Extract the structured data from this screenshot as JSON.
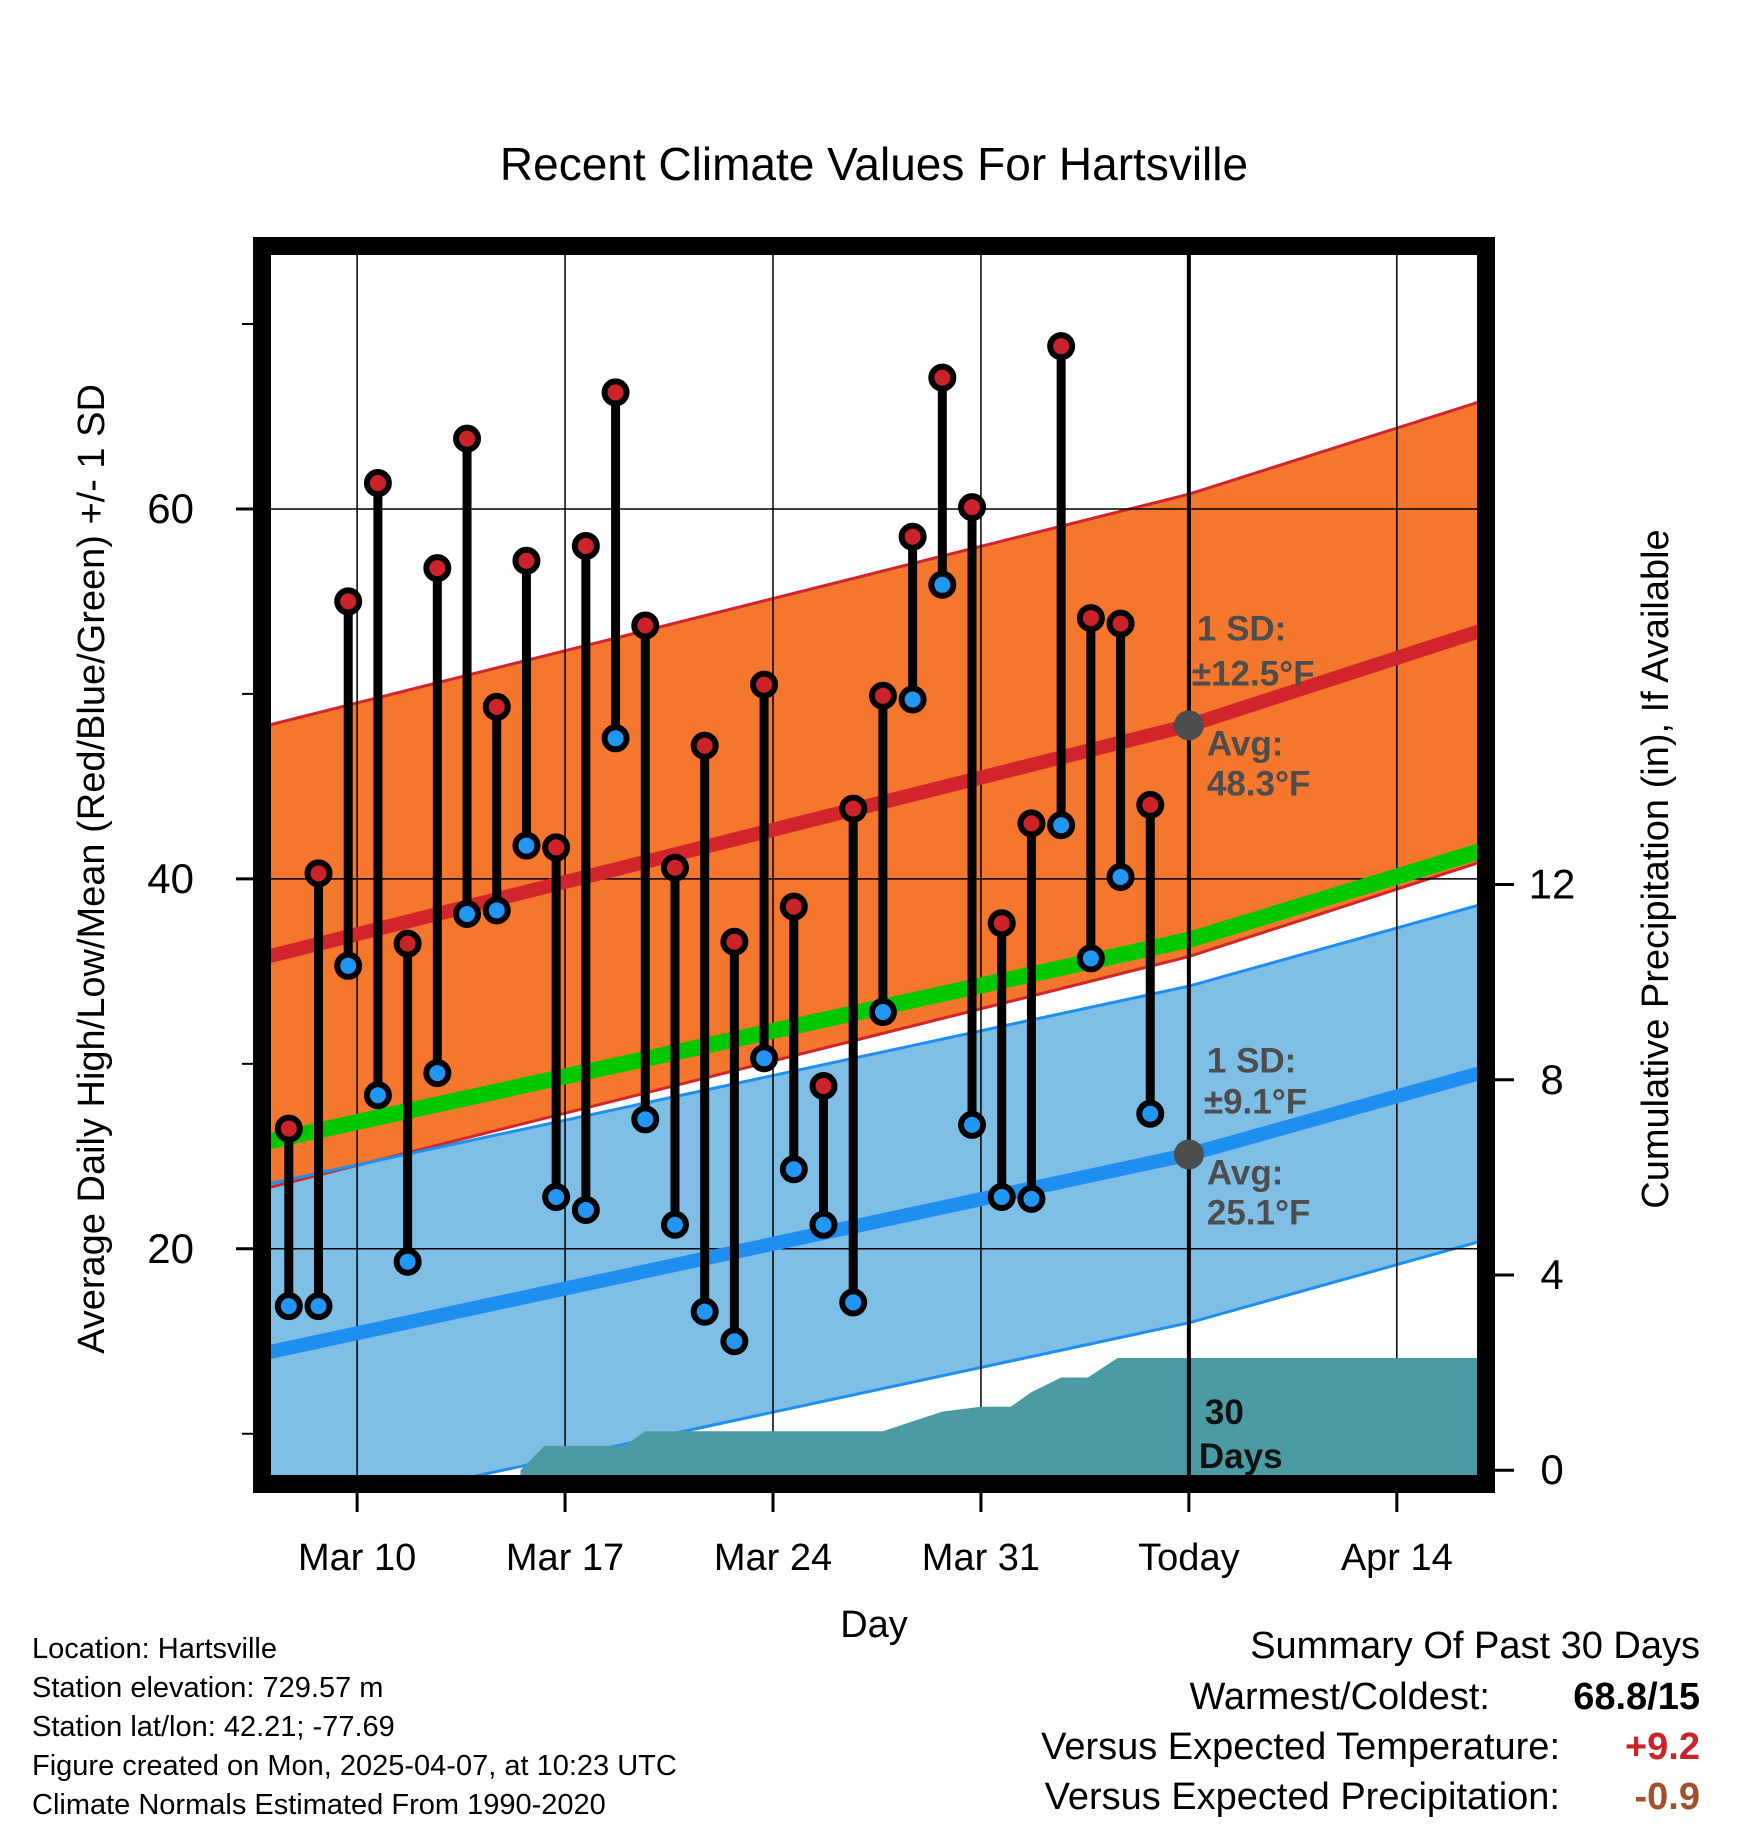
{
  "chart_data": {
    "type": "line",
    "title": "Recent Climate Values For Hartsville",
    "xlabel": "Day",
    "ylabel_left": "Average Daily High/Low/Mean (Red/Blue/Green) +/- 1 SD",
    "ylabel_right": "Cumulative Precipitation (in), If Available",
    "x_ticks": [
      {
        "day": 3,
        "label": "Mar 10"
      },
      {
        "day": 10,
        "label": "Mar 17"
      },
      {
        "day": 17,
        "label": "Mar 24"
      },
      {
        "day": 24,
        "label": "Mar 31"
      },
      {
        "day": 31,
        "label": "Today"
      },
      {
        "day": 38,
        "label": "Apr 14"
      }
    ],
    "xlim": [
      0,
      40.8
    ],
    "ylim_left": [
      7.5,
      74
    ],
    "y_ticks_left": [
      20,
      40,
      60
    ],
    "y_minor_left": [
      10,
      30,
      50,
      70
    ],
    "ylim_right": [
      -0.2,
      25
    ],
    "y_ticks_right": [
      0,
      4,
      8,
      12
    ],
    "today_day": 31,
    "today_label": "Today",
    "daily": {
      "days": [
        0.7,
        1.7,
        2.7,
        3.7,
        4.7,
        5.7,
        6.7,
        7.7,
        8.7,
        9.7,
        10.7,
        11.7,
        12.7,
        13.7,
        14.7,
        15.7,
        16.7,
        17.7,
        18.7,
        19.7,
        20.7,
        21.7,
        22.7,
        23.7,
        24.7,
        25.7,
        26.7,
        27.7,
        28.7,
        29.7
      ],
      "highs": [
        26.5,
        40.3,
        55,
        61.4,
        36.5,
        56.8,
        63.8,
        49.3,
        57.2,
        41.7,
        58,
        66.3,
        53.7,
        40.6,
        47.2,
        36.6,
        50.5,
        38.5,
        28.8,
        43.8,
        49.9,
        58.5,
        67.1,
        60.1,
        37.6,
        43,
        68.8,
        54.1,
        53.8,
        44
      ],
      "lows": [
        16.9,
        16.9,
        35.3,
        28.3,
        19.3,
        29.5,
        38.1,
        38.3,
        41.8,
        22.8,
        22.1,
        47.6,
        27,
        21.3,
        16.6,
        15,
        30.3,
        24.3,
        21.3,
        17.1,
        32.8,
        49.7,
        55.9,
        26.7,
        22.8,
        22.7,
        42.9,
        35.7,
        40.1,
        27.3
      ]
    },
    "normals": {
      "days": [
        0,
        31,
        40.8
      ],
      "high_avg": [
        35.8,
        48.3,
        53.4
      ],
      "high_sd_upper": [
        48.3,
        60.8,
        65.8
      ],
      "high_sd_lower": [
        23.3,
        35.8,
        40.9
      ],
      "low_avg": [
        14.4,
        25.1,
        29.5
      ],
      "low_sd_upper": [
        23.5,
        34.2,
        38.6
      ],
      "low_sd_lower": [
        5.3,
        16,
        20.4
      ],
      "mean_avg": [
        25.8,
        36.7,
        41.5
      ]
    },
    "precip_cumulative": {
      "days": [
        8.5,
        9.3,
        12,
        12.7,
        18.7,
        19.7,
        20.7,
        21.7,
        22.7,
        24,
        25,
        25.7,
        26.7,
        27.6,
        28.6,
        29.6,
        31,
        40.8
      ],
      "values": [
        0,
        0.5,
        0.5,
        0.8,
        0.8,
        0.8,
        0.8,
        1,
        1.2,
        1.3,
        1.3,
        1.6,
        1.9,
        1.9,
        2.3,
        2.3,
        2.3,
        2.3
      ]
    },
    "annotations": {
      "high_sd": "1 SD:",
      "high_sd_value": "±12.5°F",
      "high_avg": "Avg:",
      "high_avg_value": "48.3°F",
      "low_sd": "1 SD:",
      "low_sd_value": "±9.1°F",
      "low_avg": "Avg:",
      "low_avg_value": "25.1°F",
      "precip_label_1": "30",
      "precip_label_2": "Days"
    },
    "colors": {
      "high_band": "#F4772D",
      "high_line": "#D1252B",
      "low_band": "#7FBFE6",
      "low_line": "#1E8FEE",
      "mean_line": "#00C800",
      "precip": "#4A9BA3",
      "high_dot": "#CC2229",
      "low_dot": "#2196F3",
      "annotation": "#4D4D4D",
      "avg_dot": "#4D4D4D"
    }
  },
  "info": {
    "location": "Location: Hartsville",
    "elevation": "Station elevation: 729.57 m",
    "latlon": "Station lat/lon: 42.21; -77.69",
    "created": "Figure created on Mon, 2025-04-07, at 10:23 UTC",
    "normals": "Climate Normals Estimated From 1990-2020"
  },
  "summary": {
    "title": "Summary Of Past 30 Days",
    "warmest_label": "Warmest/Coldest:",
    "warmest_value": "68.8/15",
    "temp_label": "Versus Expected Temperature:",
    "temp_value": "+9.2",
    "temp_color": "#CC2229",
    "precip_label": "Versus Expected Precipitation:",
    "precip_value": "-0.9",
    "precip_color": "#A0522D"
  }
}
